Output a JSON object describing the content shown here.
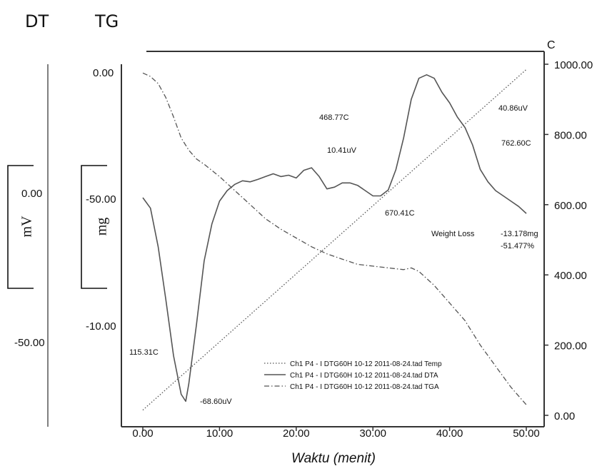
{
  "chart_data": {
    "type": "line",
    "title": "",
    "header_left": "DT",
    "header_mid": "TG",
    "right_axis_unit": "C",
    "xlabel": "Waktu (menit)",
    "xlim": [
      0,
      50
    ],
    "x_ticks": [
      "0.00",
      "10.00",
      "20.00",
      "30.00",
      "40.00",
      "50.00"
    ],
    "dta_axis": {
      "unit": "mV",
      "ticks": [
        "0.00",
        "-50.00"
      ]
    },
    "tga_axis": {
      "unit": "mg",
      "ticks": [
        "0.00",
        "-50.00",
        "-10.00"
      ]
    },
    "temp_axis": {
      "unit": "C",
      "ylim": [
        0,
        1000
      ],
      "ticks": [
        "1000.00",
        "800.00",
        "600.00",
        "400.00",
        "200.00",
        "0.00"
      ]
    },
    "annotations": [
      "468.77C",
      "10.41uV",
      "40.86uV",
      "762.60C",
      "670.41C",
      "Weight Loss",
      "-13.178mg",
      "-51.477%",
      "115.31C",
      "-68.60uV"
    ],
    "legend": [
      {
        "label": "Ch1 P4 - I DTG60H 10-12 2011-08-24.tad  Temp",
        "style": "dotted"
      },
      {
        "label": "Ch1 P4 - I DTG60H 10-12 2011-08-24.tad  DTA",
        "style": "solid"
      },
      {
        "label": "Ch1 P4 - I DTG60H 10-12 2011-08-24.tad  TGA",
        "style": "dashdot"
      }
    ],
    "series": [
      {
        "name": "Temp",
        "style": "dotted",
        "axis": "temp",
        "x": [
          0,
          50
        ],
        "y": [
          15,
          985
        ]
      },
      {
        "name": "DTA",
        "style": "solid",
        "axis": "temp",
        "x": [
          0,
          1,
          2,
          3,
          4,
          5,
          5.6,
          6,
          7,
          8,
          9,
          10,
          11,
          12,
          13,
          14,
          15,
          16,
          17,
          18,
          19,
          20,
          21,
          22,
          23,
          24,
          25,
          26,
          27,
          28,
          29,
          30,
          31,
          32,
          33,
          34,
          35,
          36,
          37,
          38,
          39,
          40,
          41,
          42,
          43,
          44,
          45,
          46,
          47,
          48,
          49,
          50
        ],
        "y": [
          620,
          590,
          480,
          330,
          170,
          60,
          40,
          90,
          260,
          440,
          545,
          610,
          640,
          658,
          668,
          665,
          672,
          680,
          688,
          680,
          684,
          676,
          698,
          705,
          680,
          645,
          650,
          662,
          662,
          655,
          640,
          625,
          625,
          642,
          700,
          790,
          900,
          960,
          970,
          960,
          920,
          890,
          850,
          820,
          770,
          700,
          665,
          640,
          625,
          610,
          595,
          575
        ]
      },
      {
        "name": "TGA",
        "style": "dashdot",
        "axis": "temp",
        "x": [
          0,
          1,
          2,
          3,
          4,
          5,
          6,
          7,
          8,
          10,
          12,
          14,
          16,
          18,
          20,
          22,
          24,
          26,
          28,
          30,
          32,
          34,
          35,
          36,
          38,
          40,
          42,
          44,
          46,
          48,
          50
        ],
        "y": [
          975,
          965,
          945,
          905,
          850,
          790,
          755,
          730,
          715,
          680,
          640,
          600,
          560,
          530,
          505,
          480,
          460,
          445,
          430,
          425,
          420,
          415,
          420,
          410,
          370,
          320,
          270,
          200,
          140,
          80,
          30
        ]
      }
    ]
  }
}
